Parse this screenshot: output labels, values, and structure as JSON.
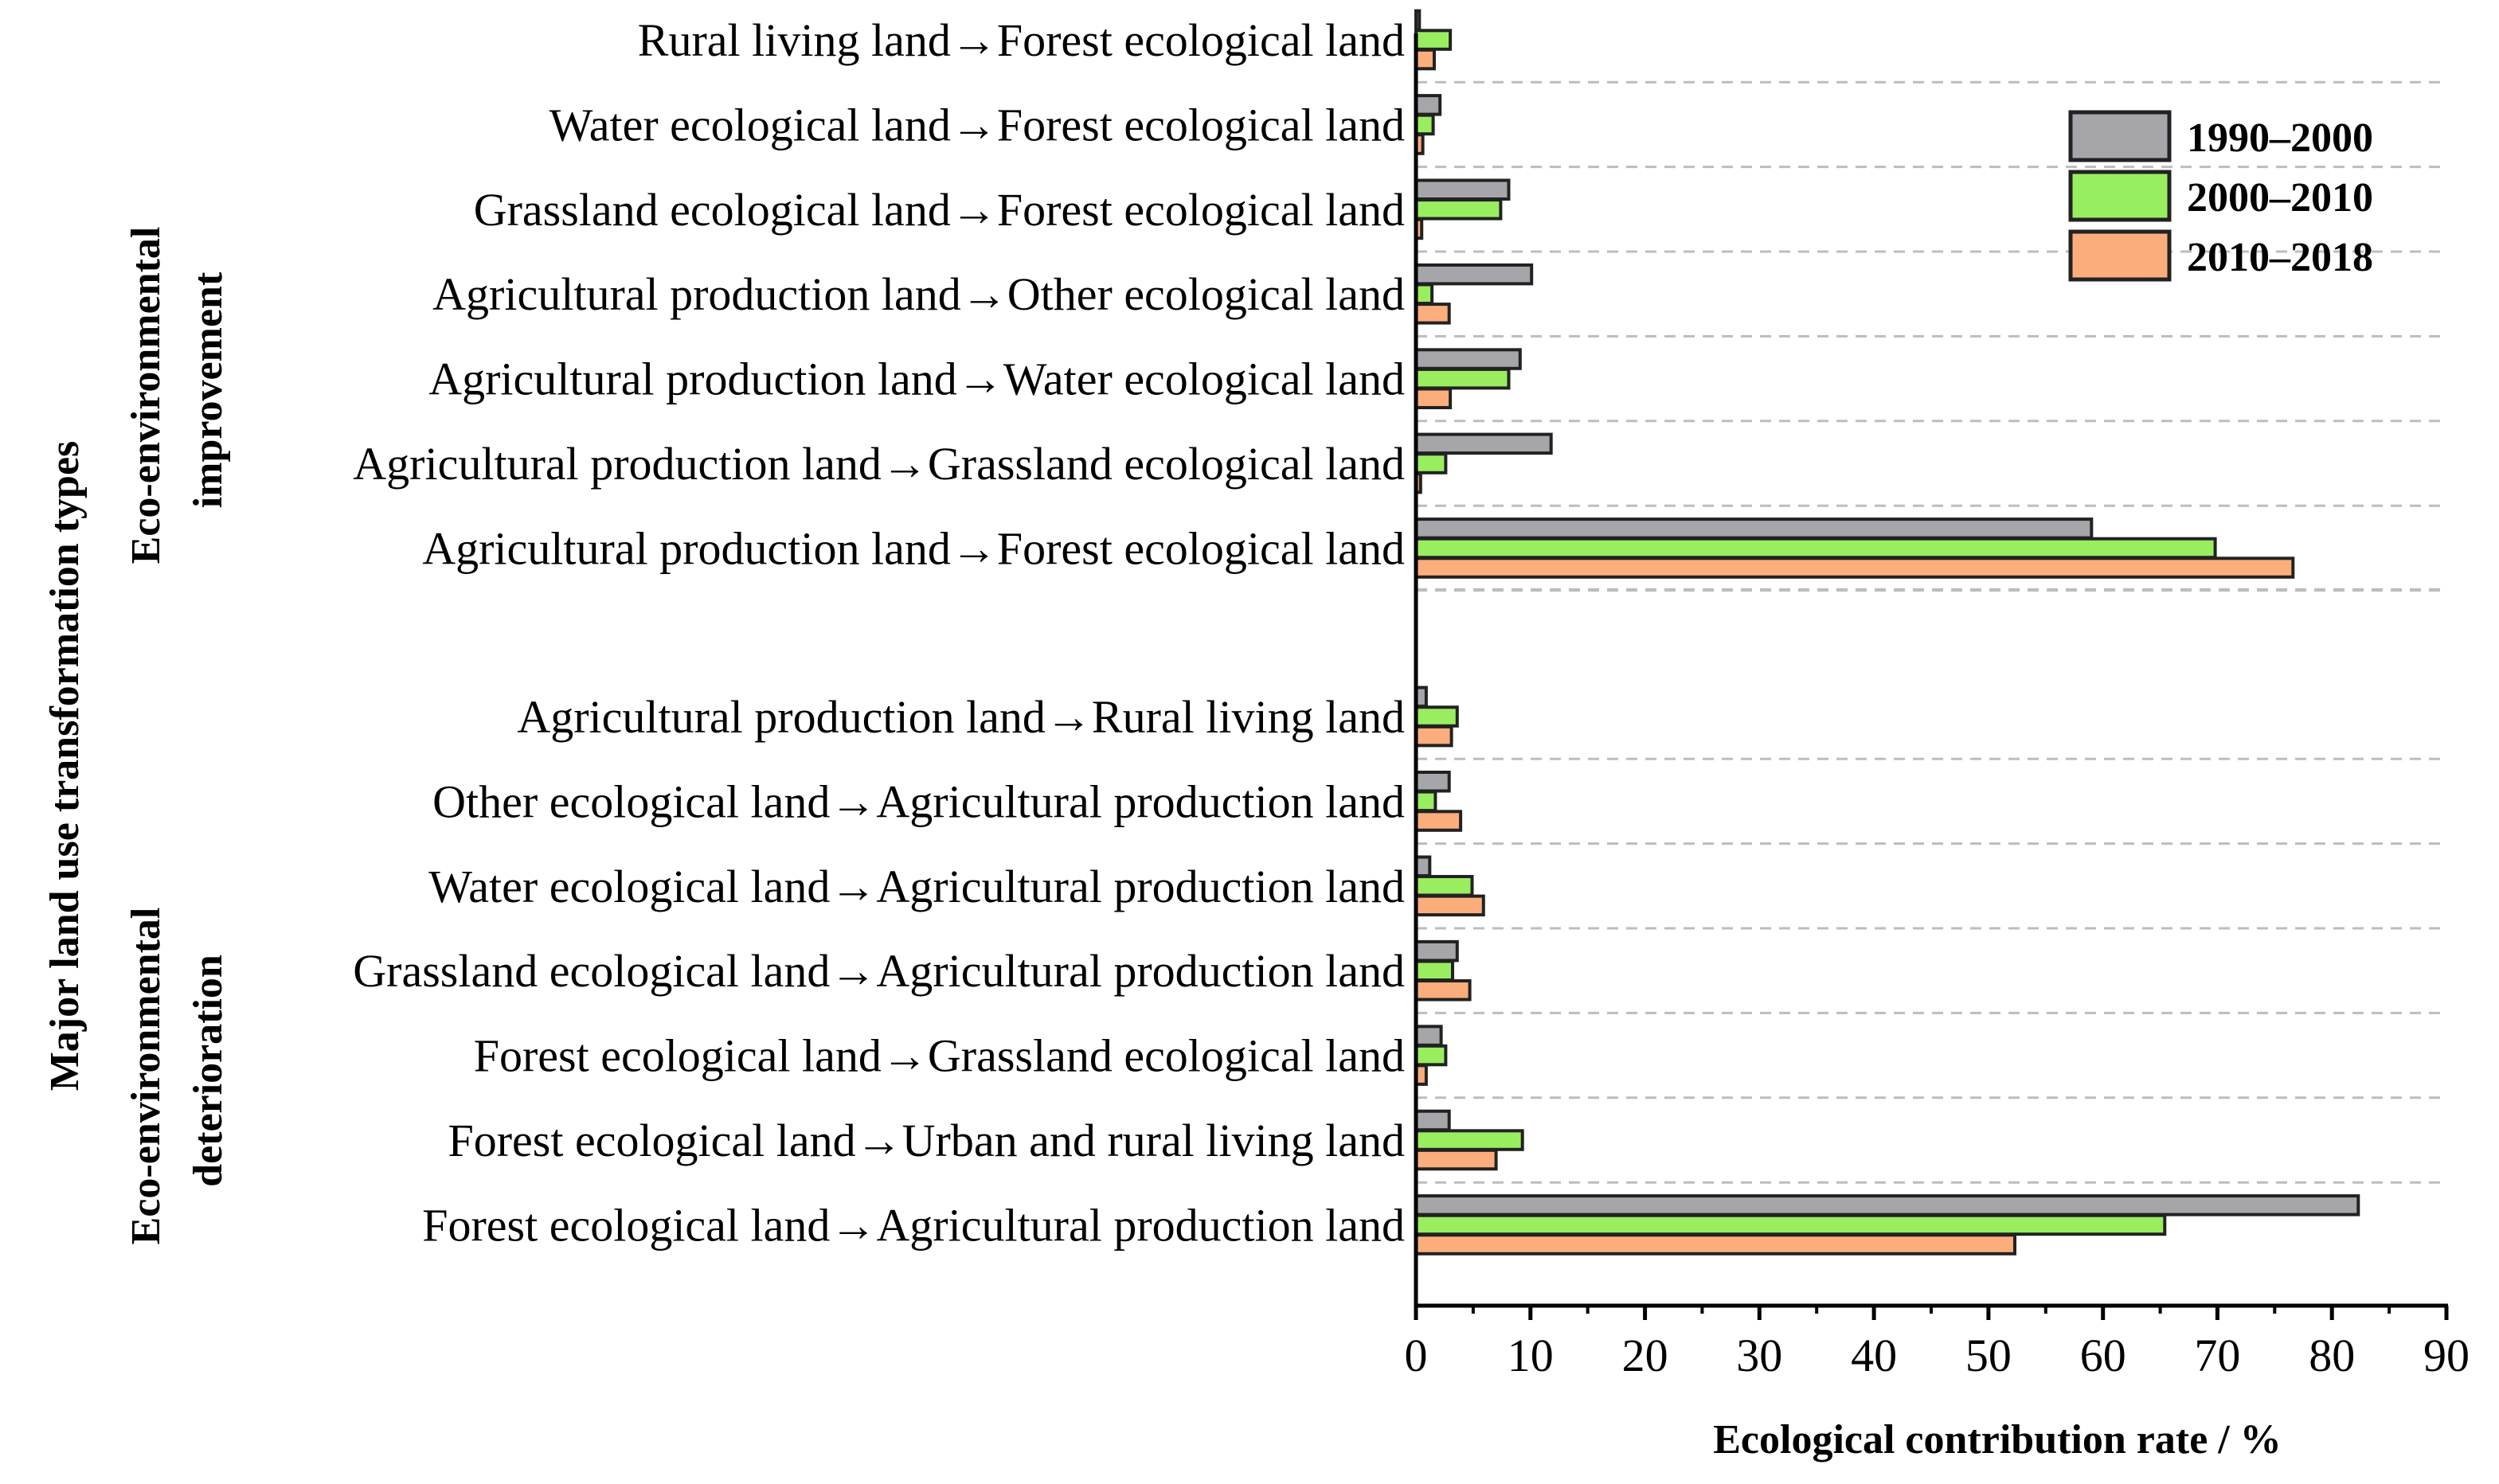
{
  "chart_data": {
    "type": "bar",
    "orientation": "horizontal",
    "xlabel": "Ecological contribution rate / %",
    "ylabel": "Major land use transformation types",
    "xlim": [
      0,
      90
    ],
    "xticks": [
      0,
      10,
      20,
      30,
      40,
      50,
      60,
      70,
      80,
      90
    ],
    "grid": "dashed horizontal separators between categories",
    "legend_position": "top-right",
    "series": [
      {
        "name": "1990–2000",
        "color": "#a6a6aa"
      },
      {
        "name": "2000–2010",
        "color": "#99ee60"
      },
      {
        "name": "2010–2018",
        "color": "#fcad7c"
      }
    ],
    "groups": [
      {
        "title": "Eco-environmental improvement",
        "title_lines": [
          "Eco-environmental",
          "improvement"
        ],
        "categories": [
          {
            "label": "Rural living land→Forest ecological land",
            "values": [
              0.3,
              3.0,
              1.6
            ]
          },
          {
            "label": "Water ecological land→Forest ecological land",
            "values": [
              2.1,
              1.5,
              0.6
            ]
          },
          {
            "label": "Grassland ecological land→Forest ecological land",
            "values": [
              8.1,
              7.4,
              0.5
            ]
          },
          {
            "label": "Agricultural production land→Other ecological land",
            "values": [
              10.1,
              1.4,
              2.9
            ]
          },
          {
            "label": "Agricultural production land→Water ecological land",
            "values": [
              9.1,
              8.1,
              3.0
            ]
          },
          {
            "label": "Agricultural production land→Grassland ecological land",
            "values": [
              11.8,
              2.6,
              0.4
            ]
          },
          {
            "label": "Agricultural production land→Forest ecological land",
            "values": [
              59.0,
              69.8,
              76.6
            ]
          }
        ]
      },
      {
        "title": "Eco-environmental deterioration",
        "title_lines": [
          "Eco-environmental",
          "deterioration"
        ],
        "categories": [
          {
            "label": "Agricultural production land→Rural living land",
            "values": [
              0.9,
              3.6,
              3.1
            ]
          },
          {
            "label": "Other ecological land→Agricultural production land",
            "values": [
              2.9,
              1.7,
              3.9
            ]
          },
          {
            "label": "Water ecological land→Agricultural production land",
            "values": [
              1.2,
              4.9,
              5.9
            ]
          },
          {
            "label": "Grassland ecological land→Agricultural production land",
            "values": [
              3.6,
              3.2,
              4.7
            ]
          },
          {
            "label": "Forest ecological land→Grassland ecological land",
            "values": [
              2.2,
              2.6,
              0.9
            ]
          },
          {
            "label": "Forest ecological land→Urban and rural living land",
            "values": [
              2.9,
              9.3,
              7.0
            ]
          },
          {
            "label": "Forest ecological land→Agricultural production land",
            "values": [
              82.3,
              65.4,
              52.3
            ]
          }
        ]
      }
    ]
  }
}
